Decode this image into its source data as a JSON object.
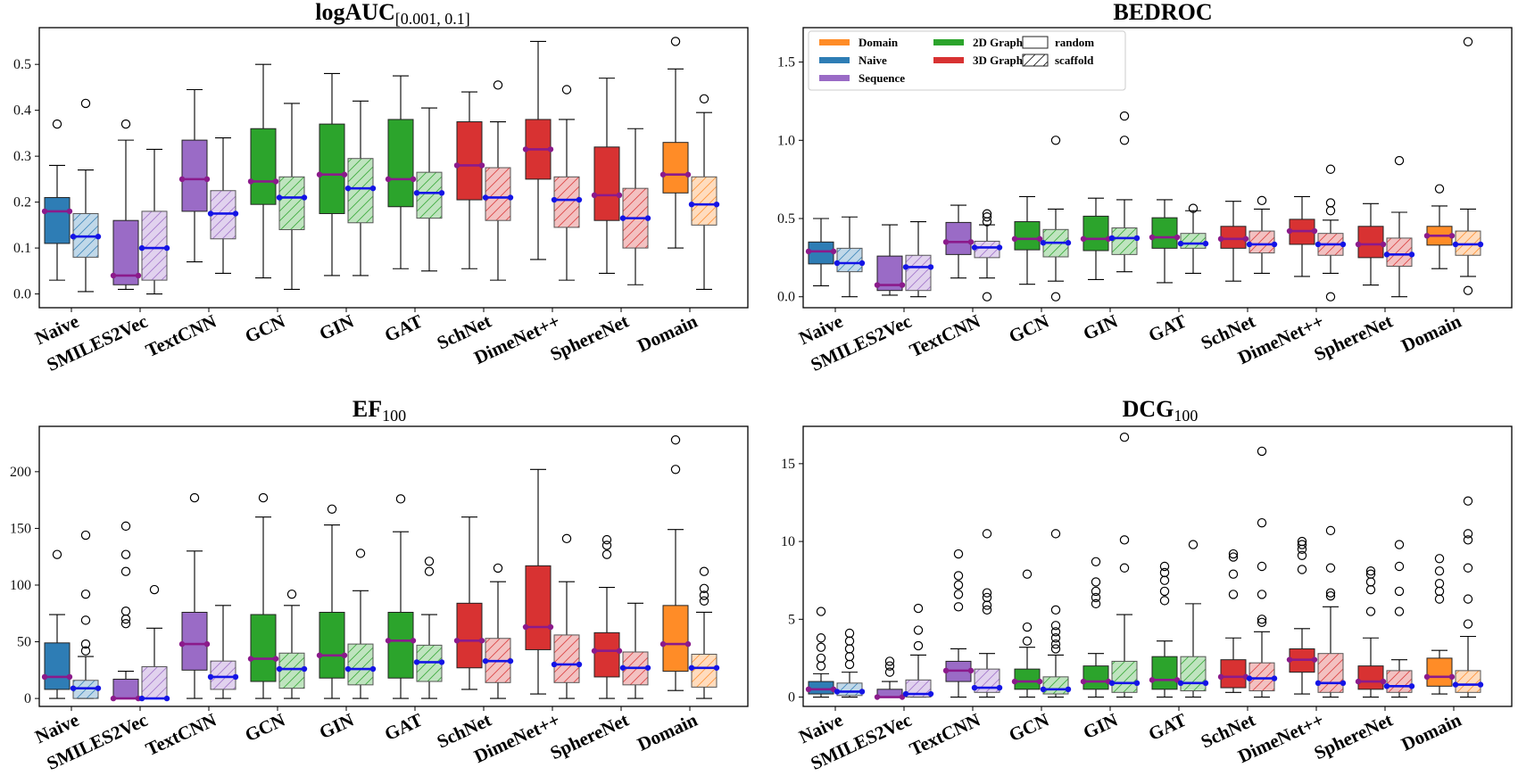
{
  "chart_data": [
    {
      "type": "boxplot",
      "title": "logAUC",
      "title_sub": "[0.001, 0.1]",
      "ylim": [
        -0.03,
        0.58
      ],
      "yticks": [
        0.0,
        0.1,
        0.2,
        0.3,
        0.4,
        0.5
      ],
      "ytick_labels": [
        "0.0",
        "0.1",
        "0.2",
        "0.3",
        "0.4",
        "0.5"
      ],
      "categories": [
        "Naive",
        "SMILES2Vec",
        "TextCNN",
        "GCN",
        "GIN",
        "GAT",
        "SchNet",
        "DimeNet++",
        "SphereNet",
        "Domain"
      ],
      "group_of_category": [
        "naive",
        "sequence",
        "sequence",
        "graph2d",
        "graph2d",
        "graph2d",
        "graph3d",
        "graph3d",
        "graph3d",
        "domain"
      ],
      "random": [
        {
          "wlo": 0.03,
          "q1": 0.11,
          "med": 0.18,
          "q3": 0.21,
          "whi": 0.28,
          "out": [
            0.37
          ]
        },
        {
          "wlo": 0.01,
          "q1": 0.02,
          "med": 0.04,
          "q3": 0.16,
          "whi": 0.335,
          "out": [
            0.37
          ]
        },
        {
          "wlo": 0.07,
          "q1": 0.18,
          "med": 0.25,
          "q3": 0.335,
          "whi": 0.445,
          "out": []
        },
        {
          "wlo": 0.035,
          "q1": 0.195,
          "med": 0.245,
          "q3": 0.36,
          "whi": 0.5,
          "out": []
        },
        {
          "wlo": 0.04,
          "q1": 0.175,
          "med": 0.26,
          "q3": 0.37,
          "whi": 0.48,
          "out": []
        },
        {
          "wlo": 0.055,
          "q1": 0.19,
          "med": 0.25,
          "q3": 0.38,
          "whi": 0.475,
          "out": []
        },
        {
          "wlo": 0.055,
          "q1": 0.205,
          "med": 0.28,
          "q3": 0.375,
          "whi": 0.44,
          "out": []
        },
        {
          "wlo": 0.075,
          "q1": 0.25,
          "med": 0.315,
          "q3": 0.38,
          "whi": 0.55,
          "out": []
        },
        {
          "wlo": 0.045,
          "q1": 0.16,
          "med": 0.215,
          "q3": 0.32,
          "whi": 0.47,
          "out": []
        },
        {
          "wlo": 0.1,
          "q1": 0.22,
          "med": 0.26,
          "q3": 0.33,
          "whi": 0.49,
          "out": [
            0.55
          ]
        }
      ],
      "scaffold": [
        {
          "wlo": 0.005,
          "q1": 0.08,
          "med": 0.125,
          "q3": 0.175,
          "whi": 0.27,
          "out": [
            0.415
          ]
        },
        {
          "wlo": 0.0,
          "q1": 0.03,
          "med": 0.1,
          "q3": 0.18,
          "whi": 0.315,
          "out": []
        },
        {
          "wlo": 0.045,
          "q1": 0.12,
          "med": 0.175,
          "q3": 0.225,
          "whi": 0.34,
          "out": []
        },
        {
          "wlo": 0.01,
          "q1": 0.14,
          "med": 0.21,
          "q3": 0.255,
          "whi": 0.415,
          "out": []
        },
        {
          "wlo": 0.04,
          "q1": 0.155,
          "med": 0.23,
          "q3": 0.295,
          "whi": 0.42,
          "out": []
        },
        {
          "wlo": 0.05,
          "q1": 0.165,
          "med": 0.22,
          "q3": 0.265,
          "whi": 0.405,
          "out": []
        },
        {
          "wlo": 0.03,
          "q1": 0.16,
          "med": 0.21,
          "q3": 0.275,
          "whi": 0.375,
          "out": [
            0.455
          ]
        },
        {
          "wlo": 0.03,
          "q1": 0.145,
          "med": 0.205,
          "q3": 0.255,
          "whi": 0.38,
          "out": [
            0.445
          ]
        },
        {
          "wlo": 0.02,
          "q1": 0.1,
          "med": 0.165,
          "q3": 0.23,
          "whi": 0.36,
          "out": []
        },
        {
          "wlo": 0.01,
          "q1": 0.15,
          "med": 0.195,
          "q3": 0.255,
          "whi": 0.395,
          "out": [
            0.425
          ]
        }
      ]
    },
    {
      "type": "boxplot",
      "title": "BEDROC",
      "title_sub": "",
      "ylim": [
        -0.07,
        1.72
      ],
      "yticks": [
        0.0,
        0.5,
        1.0,
        1.5
      ],
      "ytick_labels": [
        "0.0",
        "0.5",
        "1.0",
        "1.5"
      ],
      "categories": [
        "Naive",
        "SMILES2Vec",
        "TextCNN",
        "GCN",
        "GIN",
        "GAT",
        "SchNet",
        "DimeNet++",
        "SphereNet",
        "Domain"
      ],
      "group_of_category": [
        "naive",
        "sequence",
        "sequence",
        "graph2d",
        "graph2d",
        "graph2d",
        "graph3d",
        "graph3d",
        "graph3d",
        "domain"
      ],
      "random": [
        {
          "wlo": 0.07,
          "q1": 0.21,
          "med": 0.29,
          "q3": 0.35,
          "whi": 0.5,
          "out": []
        },
        {
          "wlo": 0.01,
          "q1": 0.04,
          "med": 0.075,
          "q3": 0.26,
          "whi": 0.46,
          "out": []
        },
        {
          "wlo": 0.12,
          "q1": 0.27,
          "med": 0.35,
          "q3": 0.475,
          "whi": 0.585,
          "out": []
        },
        {
          "wlo": 0.08,
          "q1": 0.3,
          "med": 0.37,
          "q3": 0.48,
          "whi": 0.64,
          "out": []
        },
        {
          "wlo": 0.11,
          "q1": 0.295,
          "med": 0.37,
          "q3": 0.515,
          "whi": 0.63,
          "out": []
        },
        {
          "wlo": 0.09,
          "q1": 0.31,
          "med": 0.38,
          "q3": 0.505,
          "whi": 0.62,
          "out": []
        },
        {
          "wlo": 0.1,
          "q1": 0.31,
          "med": 0.37,
          "q3": 0.45,
          "whi": 0.61,
          "out": []
        },
        {
          "wlo": 0.13,
          "q1": 0.335,
          "med": 0.42,
          "q3": 0.495,
          "whi": 0.64,
          "out": []
        },
        {
          "wlo": 0.075,
          "q1": 0.25,
          "med": 0.335,
          "q3": 0.45,
          "whi": 0.595,
          "out": []
        },
        {
          "wlo": 0.18,
          "q1": 0.33,
          "med": 0.39,
          "q3": 0.45,
          "whi": 0.58,
          "out": [
            0.69
          ]
        }
      ],
      "scaffold": [
        {
          "wlo": 0.0,
          "q1": 0.16,
          "med": 0.215,
          "q3": 0.31,
          "whi": 0.51,
          "out": []
        },
        {
          "wlo": 0.0,
          "q1": 0.04,
          "med": 0.19,
          "q3": 0.265,
          "whi": 0.48,
          "out": []
        },
        {
          "wlo": 0.12,
          "q1": 0.25,
          "med": 0.315,
          "q3": 0.355,
          "whi": 0.46,
          "out": [
            0.0,
            0.48,
            0.51,
            0.53
          ]
        },
        {
          "wlo": 0.1,
          "q1": 0.255,
          "med": 0.345,
          "q3": 0.43,
          "whi": 0.56,
          "out": [
            0.0,
            1.0
          ]
        },
        {
          "wlo": 0.16,
          "q1": 0.27,
          "med": 0.375,
          "q3": 0.44,
          "whi": 0.62,
          "out": [
            1.0,
            1.155
          ]
        },
        {
          "wlo": 0.15,
          "q1": 0.31,
          "med": 0.34,
          "q3": 0.405,
          "whi": 0.55,
          "out": [
            0.565
          ]
        },
        {
          "wlo": 0.15,
          "q1": 0.28,
          "med": 0.335,
          "q3": 0.42,
          "whi": 0.56,
          "out": [
            0.615
          ]
        },
        {
          "wlo": 0.15,
          "q1": 0.265,
          "med": 0.335,
          "q3": 0.405,
          "whi": 0.49,
          "out": [
            0.0,
            0.55,
            0.6,
            0.815
          ]
        },
        {
          "wlo": 0.0,
          "q1": 0.195,
          "med": 0.27,
          "q3": 0.375,
          "whi": 0.54,
          "out": [
            0.87
          ]
        },
        {
          "wlo": 0.13,
          "q1": 0.265,
          "med": 0.335,
          "q3": 0.42,
          "whi": 0.56,
          "out": [
            0.04,
            1.63
          ]
        }
      ],
      "legend": {
        "position": "top-left",
        "color_entries": [
          {
            "label": "Domain",
            "color": "#ff8c27"
          },
          {
            "label": "Naive",
            "color": "#2e7db5"
          },
          {
            "label": "Sequence",
            "color": "#9a6bc6"
          },
          {
            "label": "2D Graph",
            "color": "#2ca42c"
          },
          {
            "label": "3D Graph",
            "color": "#d83232"
          }
        ],
        "hatch_entries": [
          "random",
          "scaffold"
        ]
      }
    },
    {
      "type": "boxplot",
      "title": "EF",
      "title_sub": "100",
      "ylim": [
        -7,
        240
      ],
      "yticks": [
        0,
        50,
        100,
        150,
        200
      ],
      "ytick_labels": [
        "0",
        "50",
        "100",
        "150",
        "200"
      ],
      "categories": [
        "Naive",
        "SMILES2Vec",
        "TextCNN",
        "GCN",
        "GIN",
        "GAT",
        "SchNet",
        "DimeNet++",
        "SphereNet",
        "Domain"
      ],
      "group_of_category": [
        "naive",
        "sequence",
        "sequence",
        "graph2d",
        "graph2d",
        "graph2d",
        "graph3d",
        "graph3d",
        "graph3d",
        "domain"
      ],
      "random": [
        {
          "wlo": 0,
          "q1": 8,
          "med": 19,
          "q3": 49,
          "whi": 74,
          "out": [
            127
          ]
        },
        {
          "wlo": 0,
          "q1": 0,
          "med": 0,
          "q3": 17,
          "whi": 24,
          "out": [
            66,
            70,
            77,
            112,
            127,
            152
          ]
        },
        {
          "wlo": 0,
          "q1": 25,
          "med": 48,
          "q3": 76,
          "whi": 130,
          "out": [
            177
          ]
        },
        {
          "wlo": 0,
          "q1": 15,
          "med": 35,
          "q3": 74,
          "whi": 160,
          "out": [
            177
          ]
        },
        {
          "wlo": 0,
          "q1": 18,
          "med": 38,
          "q3": 76,
          "whi": 153,
          "out": [
            167
          ]
        },
        {
          "wlo": 0,
          "q1": 18,
          "med": 51,
          "q3": 76,
          "whi": 147,
          "out": [
            176
          ]
        },
        {
          "wlo": 8,
          "q1": 27,
          "med": 51,
          "q3": 84,
          "whi": 160,
          "out": []
        },
        {
          "wlo": 4,
          "q1": 43,
          "med": 63,
          "q3": 117,
          "whi": 202,
          "out": []
        },
        {
          "wlo": 0,
          "q1": 19,
          "med": 42,
          "q3": 58,
          "whi": 98,
          "out": [
            127,
            135,
            140
          ]
        },
        {
          "wlo": 7,
          "q1": 24,
          "med": 48,
          "q3": 82,
          "whi": 149,
          "out": [
            202,
            228
          ]
        }
      ],
      "scaffold": [
        {
          "wlo": 0,
          "q1": 0,
          "med": 9,
          "q3": 16,
          "whi": 37,
          "out": [
            42,
            48,
            69,
            92,
            144
          ]
        },
        {
          "wlo": 0,
          "q1": 0,
          "med": 0,
          "q3": 28,
          "whi": 62,
          "out": [
            96
          ]
        },
        {
          "wlo": 0,
          "q1": 8,
          "med": 19,
          "q3": 33,
          "whi": 82,
          "out": []
        },
        {
          "wlo": 0,
          "q1": 9,
          "med": 26,
          "q3": 40,
          "whi": 82,
          "out": [
            92
          ]
        },
        {
          "wlo": 0,
          "q1": 12,
          "med": 26,
          "q3": 48,
          "whi": 95,
          "out": [
            128
          ]
        },
        {
          "wlo": 0,
          "q1": 15,
          "med": 32,
          "q3": 47,
          "whi": 74,
          "out": [
            112,
            121
          ]
        },
        {
          "wlo": 0,
          "q1": 14,
          "med": 33,
          "q3": 53,
          "whi": 103,
          "out": [
            115
          ]
        },
        {
          "wlo": 0,
          "q1": 14,
          "med": 30,
          "q3": 56,
          "whi": 103,
          "out": [
            141
          ]
        },
        {
          "wlo": 0,
          "q1": 12,
          "med": 27,
          "q3": 41,
          "whi": 84,
          "out": []
        },
        {
          "wlo": 0,
          "q1": 10,
          "med": 27,
          "q3": 39,
          "whi": 76,
          "out": [
            86,
            91,
            97,
            112
          ]
        }
      ]
    },
    {
      "type": "boxplot",
      "title": "DCG",
      "title_sub": "100",
      "ylim": [
        -0.6,
        17.4
      ],
      "yticks": [
        0,
        5,
        10,
        15
      ],
      "ytick_labels": [
        "0",
        "5",
        "10",
        "15"
      ],
      "categories": [
        "Naive",
        "SMILES2Vec",
        "TextCNN",
        "GCN",
        "GIN",
        "GAT",
        "SchNet",
        "DimeNet++",
        "SphereNet",
        "Domain"
      ],
      "group_of_category": [
        "naive",
        "sequence",
        "sequence",
        "graph2d",
        "graph2d",
        "graph2d",
        "graph3d",
        "graph3d",
        "graph3d",
        "domain"
      ],
      "random": [
        {
          "wlo": 0,
          "q1": 0.2,
          "med": 0.5,
          "q3": 1.0,
          "whi": 1.5,
          "out": [
            2.0,
            2.5,
            3.2,
            3.8,
            5.5
          ]
        },
        {
          "wlo": 0,
          "q1": 0,
          "med": 0,
          "q3": 0.5,
          "whi": 1.0,
          "out": [
            1.6,
            2.0,
            2.3
          ]
        },
        {
          "wlo": 0,
          "q1": 1.0,
          "med": 1.7,
          "q3": 2.3,
          "whi": 3.1,
          "out": [
            5.8,
            6.6,
            7.2,
            7.8,
            9.2
          ]
        },
        {
          "wlo": 0,
          "q1": 0.5,
          "med": 1.0,
          "q3": 1.8,
          "whi": 3.2,
          "out": [
            3.6,
            4.5,
            7.9
          ]
        },
        {
          "wlo": 0,
          "q1": 0.5,
          "med": 1.0,
          "q3": 2.0,
          "whi": 2.8,
          "out": [
            6.0,
            6.4,
            6.8,
            7.4,
            8.7
          ]
        },
        {
          "wlo": 0,
          "q1": 0.5,
          "med": 1.1,
          "q3": 2.6,
          "whi": 3.6,
          "out": [
            6.2,
            6.8,
            7.5,
            8.0,
            8.4
          ]
        },
        {
          "wlo": 0.3,
          "q1": 0.6,
          "med": 1.3,
          "q3": 2.4,
          "whi": 3.8,
          "out": [
            6.6,
            7.9,
            9.0,
            9.2
          ]
        },
        {
          "wlo": 0.2,
          "q1": 1.6,
          "med": 2.4,
          "q3": 3.1,
          "whi": 4.4,
          "out": [
            8.2,
            9.1,
            9.5,
            9.8,
            10.0
          ]
        },
        {
          "wlo": 0,
          "q1": 0.5,
          "med": 1.0,
          "q3": 2.0,
          "whi": 3.8,
          "out": [
            5.5,
            6.9,
            7.4,
            7.9,
            8.1
          ]
        },
        {
          "wlo": 0.2,
          "q1": 0.7,
          "med": 1.3,
          "q3": 2.5,
          "whi": 3.0,
          "out": [
            6.3,
            6.8,
            7.3,
            8.1,
            8.9
          ]
        }
      ],
      "scaffold": [
        {
          "wlo": 0,
          "q1": 0.1,
          "med": 0.35,
          "q3": 0.9,
          "whi": 1.6,
          "out": [
            2.1,
            2.6,
            3.1,
            3.6,
            4.1
          ]
        },
        {
          "wlo": 0,
          "q1": 0,
          "med": 0.2,
          "q3": 1.1,
          "whi": 2.7,
          "out": [
            3.3,
            4.3,
            5.7
          ]
        },
        {
          "wlo": 0,
          "q1": 0.3,
          "med": 0.6,
          "q3": 1.8,
          "whi": 2.8,
          "out": [
            5.6,
            5.9,
            6.4,
            6.7,
            10.5
          ]
        },
        {
          "wlo": 0,
          "q1": 0.2,
          "med": 0.5,
          "q3": 1.3,
          "whi": 2.7,
          "out": [
            3.1,
            3.4,
            3.8,
            4.2,
            4.6,
            5.6,
            10.5
          ]
        },
        {
          "wlo": 0,
          "q1": 0.3,
          "med": 0.9,
          "q3": 2.3,
          "whi": 5.3,
          "out": [
            8.3,
            10.1,
            16.7
          ]
        },
        {
          "wlo": 0,
          "q1": 0.4,
          "med": 0.9,
          "q3": 2.6,
          "whi": 6.0,
          "out": [
            9.8
          ]
        },
        {
          "wlo": 0,
          "q1": 0.4,
          "med": 1.2,
          "q3": 2.2,
          "whi": 4.2,
          "out": [
            4.8,
            5.0,
            6.6,
            8.4,
            11.2,
            15.8
          ]
        },
        {
          "wlo": 0,
          "q1": 0.3,
          "med": 0.9,
          "q3": 2.8,
          "whi": 5.8,
          "out": [
            6.5,
            6.7,
            8.3,
            10.7
          ]
        },
        {
          "wlo": 0,
          "q1": 0.3,
          "med": 0.7,
          "q3": 1.7,
          "whi": 2.4,
          "out": [
            5.5,
            6.8,
            8.4,
            9.8
          ]
        },
        {
          "wlo": 0,
          "q1": 0.3,
          "med": 0.8,
          "q3": 1.7,
          "whi": 3.9,
          "out": [
            4.7,
            6.3,
            8.3,
            10.1,
            10.5,
            12.6
          ]
        }
      ]
    }
  ],
  "colors": {
    "domain": "#ff8c27",
    "naive": "#2e7db5",
    "sequence": "#9a6bc6",
    "graph2d": "#2ca42c",
    "graph3d": "#d83232",
    "random_median": "#8b1a8b",
    "scaffold_median": "#1414e6"
  }
}
